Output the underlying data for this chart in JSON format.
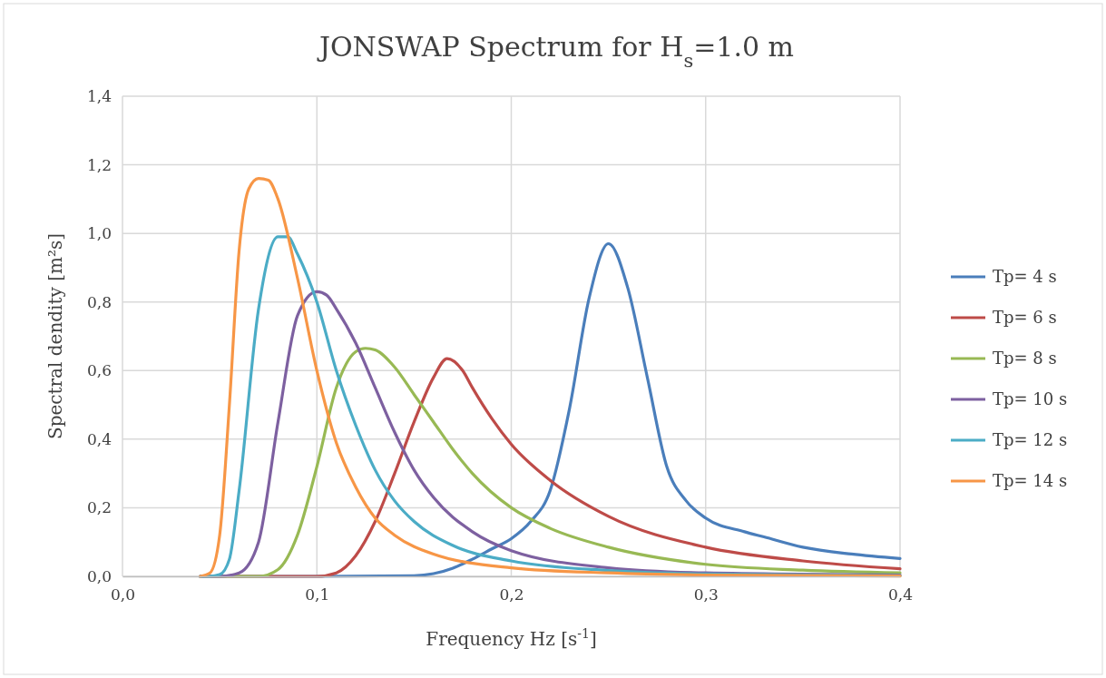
{
  "chart_data": {
    "type": "line",
    "title": "JONSWAP Spectrum for H$_{s}$=1.0 m",
    "xlabel": "Frequency Hz [s$^{-1}$]",
    "ylabel": "Spectral dendity [m²s]",
    "xlim": [
      0,
      0.4
    ],
    "ylim": [
      0,
      1.4
    ],
    "xticks": [
      {
        "value": 0,
        "label": "0,0"
      },
      {
        "value": 0.1,
        "label": "0,1"
      },
      {
        "value": 0.2,
        "label": "0,2"
      },
      {
        "value": 0.3,
        "label": "0,3"
      },
      {
        "value": 0.4,
        "label": "0,4"
      }
    ],
    "yticks": [
      {
        "value": 0,
        "label": "0,0"
      },
      {
        "value": 0.2,
        "label": "0,2"
      },
      {
        "value": 0.4,
        "label": "0,4"
      },
      {
        "value": 0.6,
        "label": "0,6"
      },
      {
        "value": 0.8,
        "label": "0,8"
      },
      {
        "value": 1.0,
        "label": "1,0"
      },
      {
        "value": 1.2,
        "label": "1,2"
      },
      {
        "value": 1.4,
        "label": "1,4"
      }
    ],
    "grid": true,
    "legend": "right",
    "marker": "none",
    "line_style": "solid",
    "series": [
      {
        "name": "Tp= 4 s",
        "color": "#4a7ebb",
        "x": [
          0.04,
          0.1,
          0.15,
          0.16,
          0.17,
          0.18,
          0.19,
          0.2,
          0.21,
          0.22,
          0.23,
          0.24,
          0.25,
          0.26,
          0.27,
          0.28,
          0.29,
          0.3,
          0.32,
          0.33,
          0.35,
          0.375,
          0.4
        ],
        "values": [
          0,
          0,
          0.002,
          0.008,
          0.024,
          0.05,
          0.08,
          0.11,
          0.16,
          0.25,
          0.49,
          0.81,
          0.97,
          0.84,
          0.58,
          0.32,
          0.22,
          0.17,
          0.13,
          0.115,
          0.085,
          0.065,
          0.052
        ]
      },
      {
        "name": "Tp= 6 s",
        "color": "#be4b48",
        "x": [
          0.04,
          0.1,
          0.11,
          0.12,
          0.13,
          0.14,
          0.15,
          0.16,
          0.167,
          0.175,
          0.18,
          0.19,
          0.2,
          0.22,
          0.25,
          0.3,
          0.35,
          0.4
        ],
        "values": [
          0,
          0,
          0.01,
          0.06,
          0.16,
          0.3,
          0.45,
          0.58,
          0.635,
          0.6,
          0.55,
          0.46,
          0.385,
          0.28,
          0.175,
          0.085,
          0.045,
          0.022
        ]
      },
      {
        "name": "Tp= 8 s",
        "color": "#98b954",
        "x": [
          0.04,
          0.07,
          0.08,
          0.09,
          0.1,
          0.11,
          0.12,
          0.125,
          0.13,
          0.14,
          0.15,
          0.16,
          0.17,
          0.18,
          0.2,
          0.22,
          0.25,
          0.3,
          0.35,
          0.4
        ],
        "values": [
          0,
          0,
          0.02,
          0.12,
          0.32,
          0.55,
          0.655,
          0.665,
          0.66,
          0.61,
          0.53,
          0.45,
          0.37,
          0.3,
          0.2,
          0.14,
          0.085,
          0.035,
          0.018,
          0.01
        ]
      },
      {
        "name": "Tp= 10 s",
        "color": "#7d60a0",
        "x": [
          0.04,
          0.05,
          0.06,
          0.07,
          0.08,
          0.09,
          0.1,
          0.105,
          0.11,
          0.12,
          0.13,
          0.14,
          0.15,
          0.16,
          0.18,
          0.2,
          0.25,
          0.3,
          0.4
        ],
        "values": [
          0,
          0,
          0.01,
          0.1,
          0.45,
          0.76,
          0.83,
          0.82,
          0.78,
          0.68,
          0.55,
          0.42,
          0.31,
          0.23,
          0.13,
          0.075,
          0.025,
          0.01,
          0.004
        ]
      },
      {
        "name": "Tp= 12 s",
        "color": "#4bacc6",
        "x": [
          0.04,
          0.045,
          0.05,
          0.055,
          0.06,
          0.07,
          0.08,
          0.085,
          0.09,
          0.1,
          0.11,
          0.12,
          0.13,
          0.14,
          0.15,
          0.17,
          0.2,
          0.25,
          0.3,
          0.4
        ],
        "values": [
          0,
          0,
          0.005,
          0.05,
          0.25,
          0.78,
          0.99,
          0.99,
          0.94,
          0.8,
          0.6,
          0.44,
          0.31,
          0.22,
          0.16,
          0.09,
          0.045,
          0.017,
          0.007,
          0.002
        ]
      },
      {
        "name": "Tp= 14 s",
        "color": "#f79646",
        "x": [
          0.04,
          0.045,
          0.05,
          0.055,
          0.06,
          0.065,
          0.07,
          0.075,
          0.08,
          0.09,
          0.1,
          0.11,
          0.12,
          0.13,
          0.14,
          0.16,
          0.2,
          0.25,
          0.3,
          0.4
        ],
        "values": [
          0,
          0.01,
          0.12,
          0.5,
          0.95,
          1.13,
          1.16,
          1.155,
          1.1,
          0.87,
          0.6,
          0.39,
          0.26,
          0.17,
          0.12,
          0.065,
          0.025,
          0.01,
          0.004,
          0.001
        ]
      }
    ]
  }
}
